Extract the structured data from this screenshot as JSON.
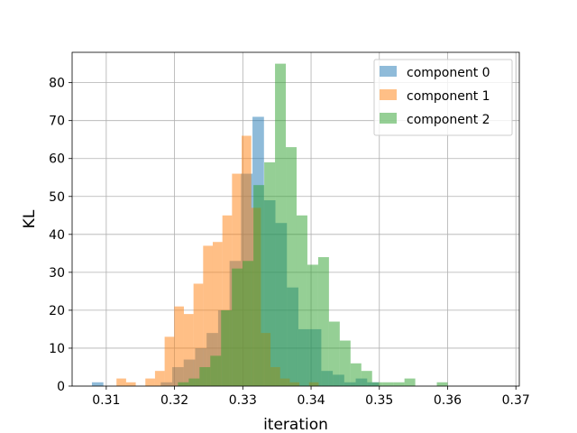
{
  "chart_data": {
    "type": "histogram",
    "xlabel": "iteration",
    "ylabel": "KL",
    "xlim": [
      0.305,
      0.3705
    ],
    "ylim": [
      0,
      88
    ],
    "xticks": [
      0.31,
      0.32,
      0.33,
      0.34,
      0.35,
      0.36,
      0.37
    ],
    "xtick_labels": [
      "0.31",
      "0.32",
      "0.33",
      "0.34",
      "0.35",
      "0.36",
      "0.37"
    ],
    "yticks": [
      0,
      10,
      20,
      30,
      40,
      50,
      60,
      70,
      80
    ],
    "ytick_labels": [
      "0",
      "10",
      "20",
      "30",
      "40",
      "50",
      "60",
      "70",
      "80"
    ],
    "grid": true,
    "legend_position": "top-right",
    "series": [
      {
        "name": "component 0",
        "color": "#1f77b4",
        "alpha": 0.5,
        "bin_start": 0.3079,
        "bin_width": 0.00168,
        "counts": [
          1,
          0,
          0,
          0,
          0,
          0,
          1,
          5,
          7,
          10,
          14,
          20,
          33,
          56,
          71,
          49,
          43,
          26,
          15,
          15,
          4,
          3,
          1,
          2,
          1
        ]
      },
      {
        "name": "component 1",
        "color": "#ff7f0e",
        "alpha": 0.5,
        "bin_start": 0.3115,
        "bin_width": 0.00141,
        "counts": [
          2,
          1,
          0,
          2,
          4,
          13,
          21,
          19,
          27,
          37,
          38,
          45,
          56,
          66,
          47,
          14,
          5,
          2,
          1,
          0,
          1
        ]
      },
      {
        "name": "component 2",
        "color": "#2ca02c",
        "alpha": 0.5,
        "bin_start": 0.3205,
        "bin_width": 0.00158,
        "counts": [
          1,
          2,
          5,
          8,
          20,
          31,
          33,
          53,
          59,
          85,
          63,
          45,
          32,
          34,
          17,
          12,
          6,
          4,
          1,
          1,
          1,
          2,
          0,
          0,
          1
        ]
      }
    ]
  }
}
